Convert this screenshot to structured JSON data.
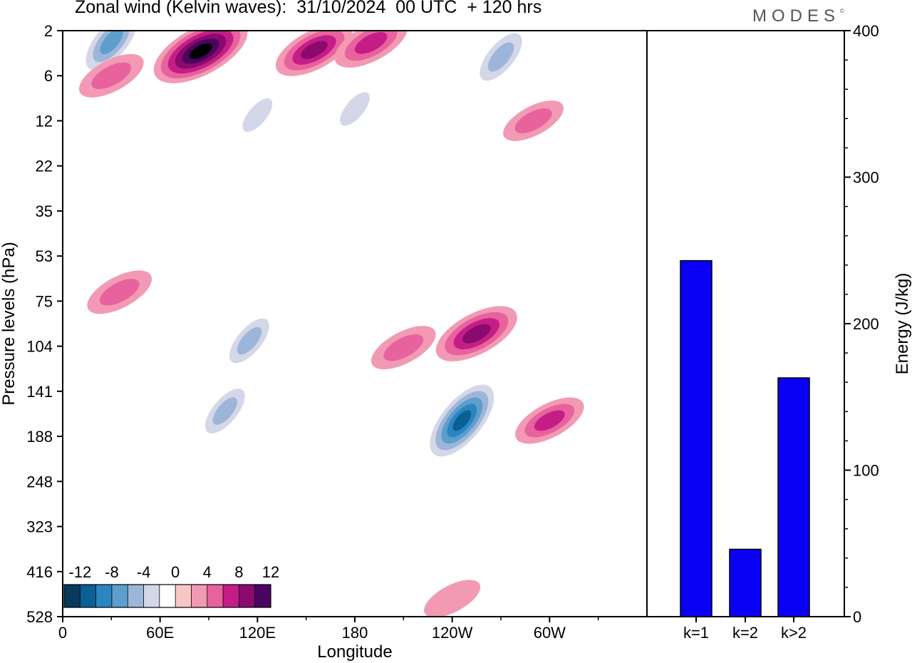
{
  "title": "Zonal wind (Kelvin waves):  31/10/2024  00 UTC  + 120 hrs",
  "brand": "MODES",
  "brand_mark": "©",
  "chart_data": [
    {
      "type": "heatmap",
      "xlabel": "Longitude",
      "ylabel": "Pressure levels (hPa)",
      "x_ticks": [
        "0",
        "60E",
        "120E",
        "180",
        "120W",
        "60W"
      ],
      "y_ticks": [
        "2",
        "6",
        "12",
        "22",
        "35",
        "53",
        "75",
        "104",
        "141",
        "188",
        "248",
        "323",
        "416",
        "528"
      ],
      "colorbar_labels": [
        "-12",
        "-8",
        "-4",
        "0",
        "4",
        "8",
        "12"
      ],
      "colorbar_levels": [
        -14,
        -12,
        -10,
        -8,
        -6,
        -4,
        -2,
        2,
        4,
        6,
        8,
        10,
        12,
        14
      ],
      "colors": [
        "#073a5c",
        "#0a5f94",
        "#2b86c0",
        "#5d9ecd",
        "#9db5d8",
        "#d4d7e8",
        "#ffffff",
        "#f7c7c3",
        "#f29ab3",
        "#e8629e",
        "#c41e86",
        "#8b0a6e",
        "#4b0560"
      ],
      "features": [
        {
          "lon": 30,
          "lev": 2.6,
          "v": -9
        },
        {
          "lon": 85,
          "lev": 3.3,
          "v": 12
        },
        {
          "lon": 155,
          "lev": 3.2,
          "v": 8
        },
        {
          "lon": 190,
          "lev": 2.7,
          "v": 7
        },
        {
          "lon": 270,
          "lev": 3.8,
          "v": -7
        },
        {
          "lon": 30,
          "lev": 6,
          "v": 5
        },
        {
          "lon": 120,
          "lev": 11,
          "v": -4
        },
        {
          "lon": 180,
          "lev": 10,
          "v": -4
        },
        {
          "lon": 290,
          "lev": 12,
          "v": 4
        },
        {
          "lon": 35,
          "lev": 70,
          "v": 5
        },
        {
          "lon": 115,
          "lev": 100,
          "v": -6
        },
        {
          "lon": 100,
          "lev": 160,
          "v": -6
        },
        {
          "lon": 210,
          "lev": 105,
          "v": 5
        },
        {
          "lon": 255,
          "lev": 95,
          "v": 9
        },
        {
          "lon": 246,
          "lev": 170,
          "v": -12
        },
        {
          "lon": 300,
          "lev": 170,
          "v": 6
        },
        {
          "lon": 240,
          "lev": 480,
          "v": 3
        }
      ]
    },
    {
      "type": "bar",
      "categories": [
        "k=1",
        "k=2",
        "k>2"
      ],
      "values": [
        243,
        46,
        163
      ],
      "ylabel": "Energy (J/kg)",
      "ylim": [
        0,
        400
      ],
      "y_ticks": [
        0,
        100,
        200,
        300,
        400
      ],
      "bar_color": "#0a00f5"
    }
  ]
}
